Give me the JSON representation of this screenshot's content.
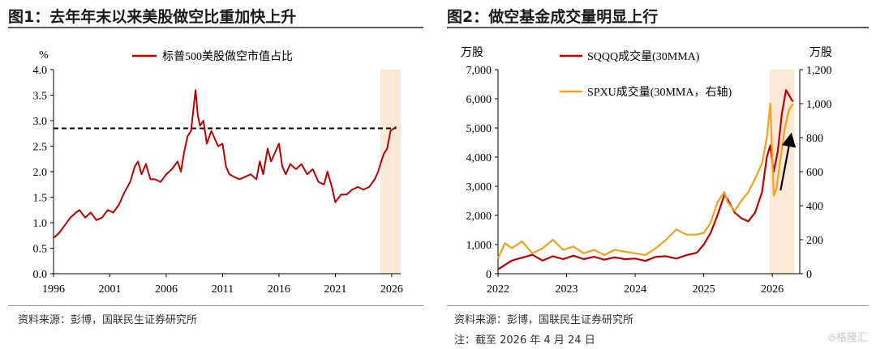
{
  "left": {
    "title": "图1：去年年末以来美股做空比重加快上升",
    "source": "资料来源：彭博，国联民生证券研究所",
    "chart_data": {
      "type": "line",
      "y_unit": "%",
      "ylim": [
        0,
        4
      ],
      "y_ticks": [
        "0.0",
        "0.5",
        "1.0",
        "1.5",
        "2.0",
        "2.5",
        "3.0",
        "3.5",
        "4.0"
      ],
      "xlim": [
        1996,
        2026.8
      ],
      "x_ticks": [
        "1996",
        "2001",
        "2006",
        "2011",
        "2016",
        "2021",
        "2026"
      ],
      "series": [
        {
          "name": "标普500美股做空市值占比",
          "color": "#c00000",
          "x": [
            1996.0,
            1996.5,
            1997.0,
            1997.5,
            1998.0,
            1998.3,
            1998.8,
            1999.3,
            1999.8,
            2000.3,
            2000.8,
            2001.3,
            2001.8,
            2002.3,
            2002.8,
            2003.2,
            2003.5,
            2003.8,
            2004.2,
            2004.6,
            2005.0,
            2005.5,
            2006.0,
            2006.5,
            2007.0,
            2007.3,
            2007.6,
            2007.9,
            2008.2,
            2008.4,
            2008.6,
            2008.8,
            2009.0,
            2009.3,
            2009.6,
            2010.0,
            2010.3,
            2010.6,
            2011.0,
            2011.3,
            2011.6,
            2012.0,
            2012.5,
            2013.0,
            2013.5,
            2014.0,
            2014.3,
            2014.6,
            2015.0,
            2015.3,
            2015.6,
            2016.0,
            2016.3,
            2016.6,
            2017.0,
            2017.5,
            2018.0,
            2018.5,
            2019.0,
            2019.5,
            2020.0,
            2020.3,
            2020.7,
            2021.0,
            2021.5,
            2022.0,
            2022.5,
            2023.0,
            2023.5,
            2024.0,
            2024.5,
            2024.8,
            2025.0,
            2025.3,
            2025.6,
            2025.9,
            2026.2,
            2026.4
          ],
          "values": [
            0.7,
            0.8,
            0.95,
            1.1,
            1.2,
            1.25,
            1.1,
            1.2,
            1.05,
            1.1,
            1.25,
            1.2,
            1.35,
            1.6,
            1.8,
            2.1,
            2.2,
            1.95,
            2.15,
            1.85,
            1.85,
            1.8,
            1.95,
            2.05,
            2.2,
            2.0,
            2.4,
            2.7,
            2.8,
            3.2,
            3.6,
            3.1,
            2.9,
            3.0,
            2.55,
            2.8,
            2.65,
            2.5,
            2.55,
            2.1,
            1.95,
            1.9,
            1.85,
            1.9,
            1.95,
            1.85,
            2.2,
            1.95,
            2.45,
            2.2,
            2.35,
            2.55,
            2.1,
            1.95,
            2.15,
            2.05,
            2.15,
            1.95,
            2.05,
            1.8,
            1.75,
            2.0,
            1.7,
            1.4,
            1.55,
            1.55,
            1.65,
            1.7,
            1.65,
            1.7,
            1.85,
            2.0,
            2.15,
            2.35,
            2.45,
            2.8,
            2.85,
            2.88
          ]
        }
      ],
      "reference_line": {
        "y": 2.85,
        "style": "dashed",
        "x_from": 1996,
        "x_to": 2026.4
      },
      "highlight": {
        "x_from": 2025.0,
        "x_to": 2026.8,
        "color": "#fbe9d6"
      }
    }
  },
  "right": {
    "title": "图2：做空基金成交量明显上行",
    "source": "资料来源：彭博，国联民生证券研究所",
    "note": "注：截至 2026 年 4 月 24 日",
    "chart_data": {
      "type": "line",
      "y_left_unit": "万股",
      "y_right_unit": "万股",
      "ylim_left": [
        0,
        7000
      ],
      "ylim_right": [
        0,
        1200
      ],
      "y_left_ticks": [
        "0",
        "1,000",
        "2,000",
        "3,000",
        "4,000",
        "5,000",
        "6,000",
        "7,000"
      ],
      "y_right_ticks": [
        "0",
        "200",
        "400",
        "600",
        "800",
        "1,000",
        "1,200"
      ],
      "xlim": [
        2022,
        2026.4
      ],
      "x_ticks": [
        "2022",
        "2023",
        "2024",
        "2025",
        "2026"
      ],
      "series": [
        {
          "name": "SQQQ成交量(30MMA)",
          "axis": "left",
          "color": "#c00000",
          "x": [
            2022.0,
            2022.1,
            2022.2,
            2022.35,
            2022.5,
            2022.65,
            2022.8,
            2022.95,
            2023.1,
            2023.25,
            2023.4,
            2023.55,
            2023.7,
            2023.85,
            2024.0,
            2024.15,
            2024.3,
            2024.45,
            2024.6,
            2024.75,
            2024.9,
            2025.0,
            2025.1,
            2025.2,
            2025.3,
            2025.35,
            2025.45,
            2025.55,
            2025.65,
            2025.75,
            2025.85,
            2025.92,
            2025.97,
            2026.02,
            2026.08,
            2026.14,
            2026.2,
            2026.25,
            2026.3
          ],
          "values": [
            150,
            300,
            450,
            550,
            650,
            450,
            600,
            500,
            620,
            500,
            580,
            480,
            560,
            500,
            520,
            440,
            580,
            600,
            520,
            640,
            720,
            1000,
            1400,
            2000,
            2700,
            2550,
            2100,
            1900,
            1800,
            2100,
            2800,
            4000,
            4400,
            3500,
            4200,
            5500,
            6300,
            6100,
            5900
          ]
        },
        {
          "name": "SPXU成交量(30MMA，右轴)",
          "axis": "right",
          "color": "#f5a11a",
          "x": [
            2022.0,
            2022.1,
            2022.2,
            2022.35,
            2022.5,
            2022.65,
            2022.8,
            2022.95,
            2023.1,
            2023.25,
            2023.4,
            2023.55,
            2023.7,
            2023.85,
            2024.0,
            2024.15,
            2024.3,
            2024.45,
            2024.6,
            2024.75,
            2024.9,
            2025.0,
            2025.1,
            2025.2,
            2025.3,
            2025.35,
            2025.45,
            2025.55,
            2025.65,
            2025.75,
            2025.85,
            2025.92,
            2025.97,
            2026.02,
            2026.06,
            2026.12,
            2026.18,
            2026.24,
            2026.3
          ],
          "values": [
            90,
            180,
            150,
            190,
            120,
            150,
            200,
            140,
            160,
            120,
            140,
            110,
            140,
            130,
            120,
            110,
            150,
            200,
            260,
            230,
            230,
            240,
            300,
            420,
            480,
            420,
            370,
            430,
            480,
            560,
            650,
            800,
            1000,
            460,
            500,
            680,
            850,
            960,
            1000
          ]
        }
      ],
      "highlight": {
        "x_from": 2025.96,
        "x_to": 2026.32,
        "color": "#fbe9d6"
      },
      "annotation_arrow": {
        "from": {
          "x": 2026.12,
          "y_right": 490
        },
        "to": {
          "x": 2026.27,
          "y_right": 810
        }
      }
    }
  }
}
